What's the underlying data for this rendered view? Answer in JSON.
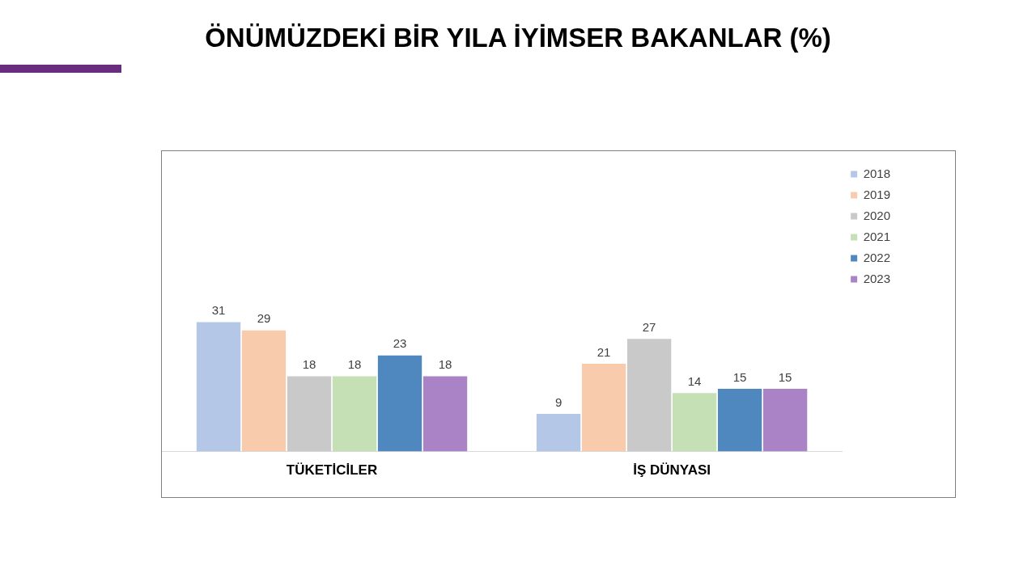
{
  "chart_data": {
    "type": "bar",
    "title": "ÖNÜMÜZDEKİ BİR YILA İYİMSER BAKANLAR (%)",
    "categories": [
      "TÜKETİCİLER",
      "İŞ DÜNYASI"
    ],
    "series": [
      {
        "name": "2018",
        "color": "#b4c7e7",
        "values": [
          31,
          9
        ]
      },
      {
        "name": "2019",
        "color": "#f8cbad",
        "values": [
          29,
          21
        ]
      },
      {
        "name": "2020",
        "color": "#c9c9c9",
        "values": [
          18,
          27
        ]
      },
      {
        "name": "2021",
        "color": "#c5e0b4",
        "values": [
          18,
          14
        ]
      },
      {
        "name": "2022",
        "color": "#4e88bf",
        "values": [
          23,
          15
        ]
      },
      {
        "name": "2023",
        "color": "#a983c6",
        "values": [
          18,
          15
        ]
      }
    ],
    "data_labels": true,
    "legend": "top right",
    "grid": false,
    "tick_labels": "x"
  }
}
